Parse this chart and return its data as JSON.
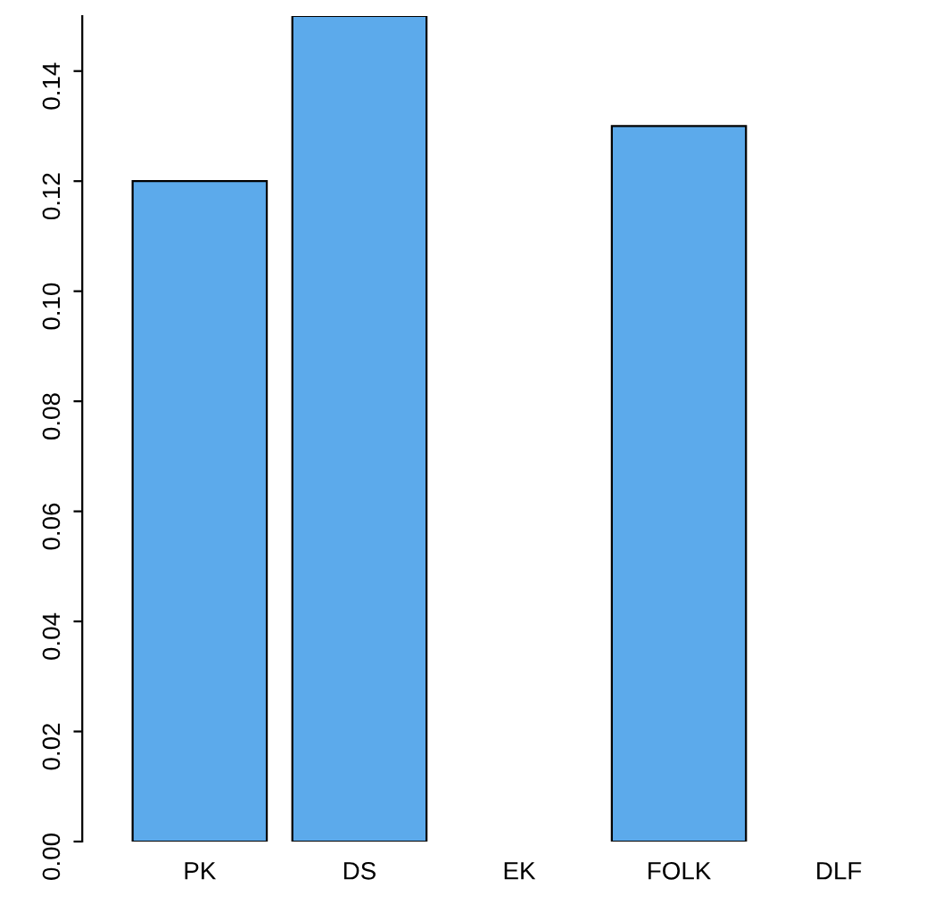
{
  "chart_data": {
    "type": "bar",
    "categories": [
      "PK",
      "DS",
      "EK",
      "FOLK",
      "DLF"
    ],
    "values": [
      0.12,
      0.15,
      0,
      0.13,
      0
    ],
    "color": "#5caaeb",
    "ylim": [
      0,
      0.15
    ],
    "yticks": [
      {
        "value": 0,
        "label": "0.00"
      },
      {
        "value": 0.02,
        "label": "0.02"
      },
      {
        "value": 0.04,
        "label": "0.04"
      },
      {
        "value": 0.06,
        "label": "0.06"
      },
      {
        "value": 0.08,
        "label": "0.08"
      },
      {
        "value": 0.1,
        "label": "0.10"
      },
      {
        "value": 0.12,
        "label": "0.12"
      },
      {
        "value": 0.14,
        "label": "0.14"
      }
    ],
    "grid": false
  }
}
